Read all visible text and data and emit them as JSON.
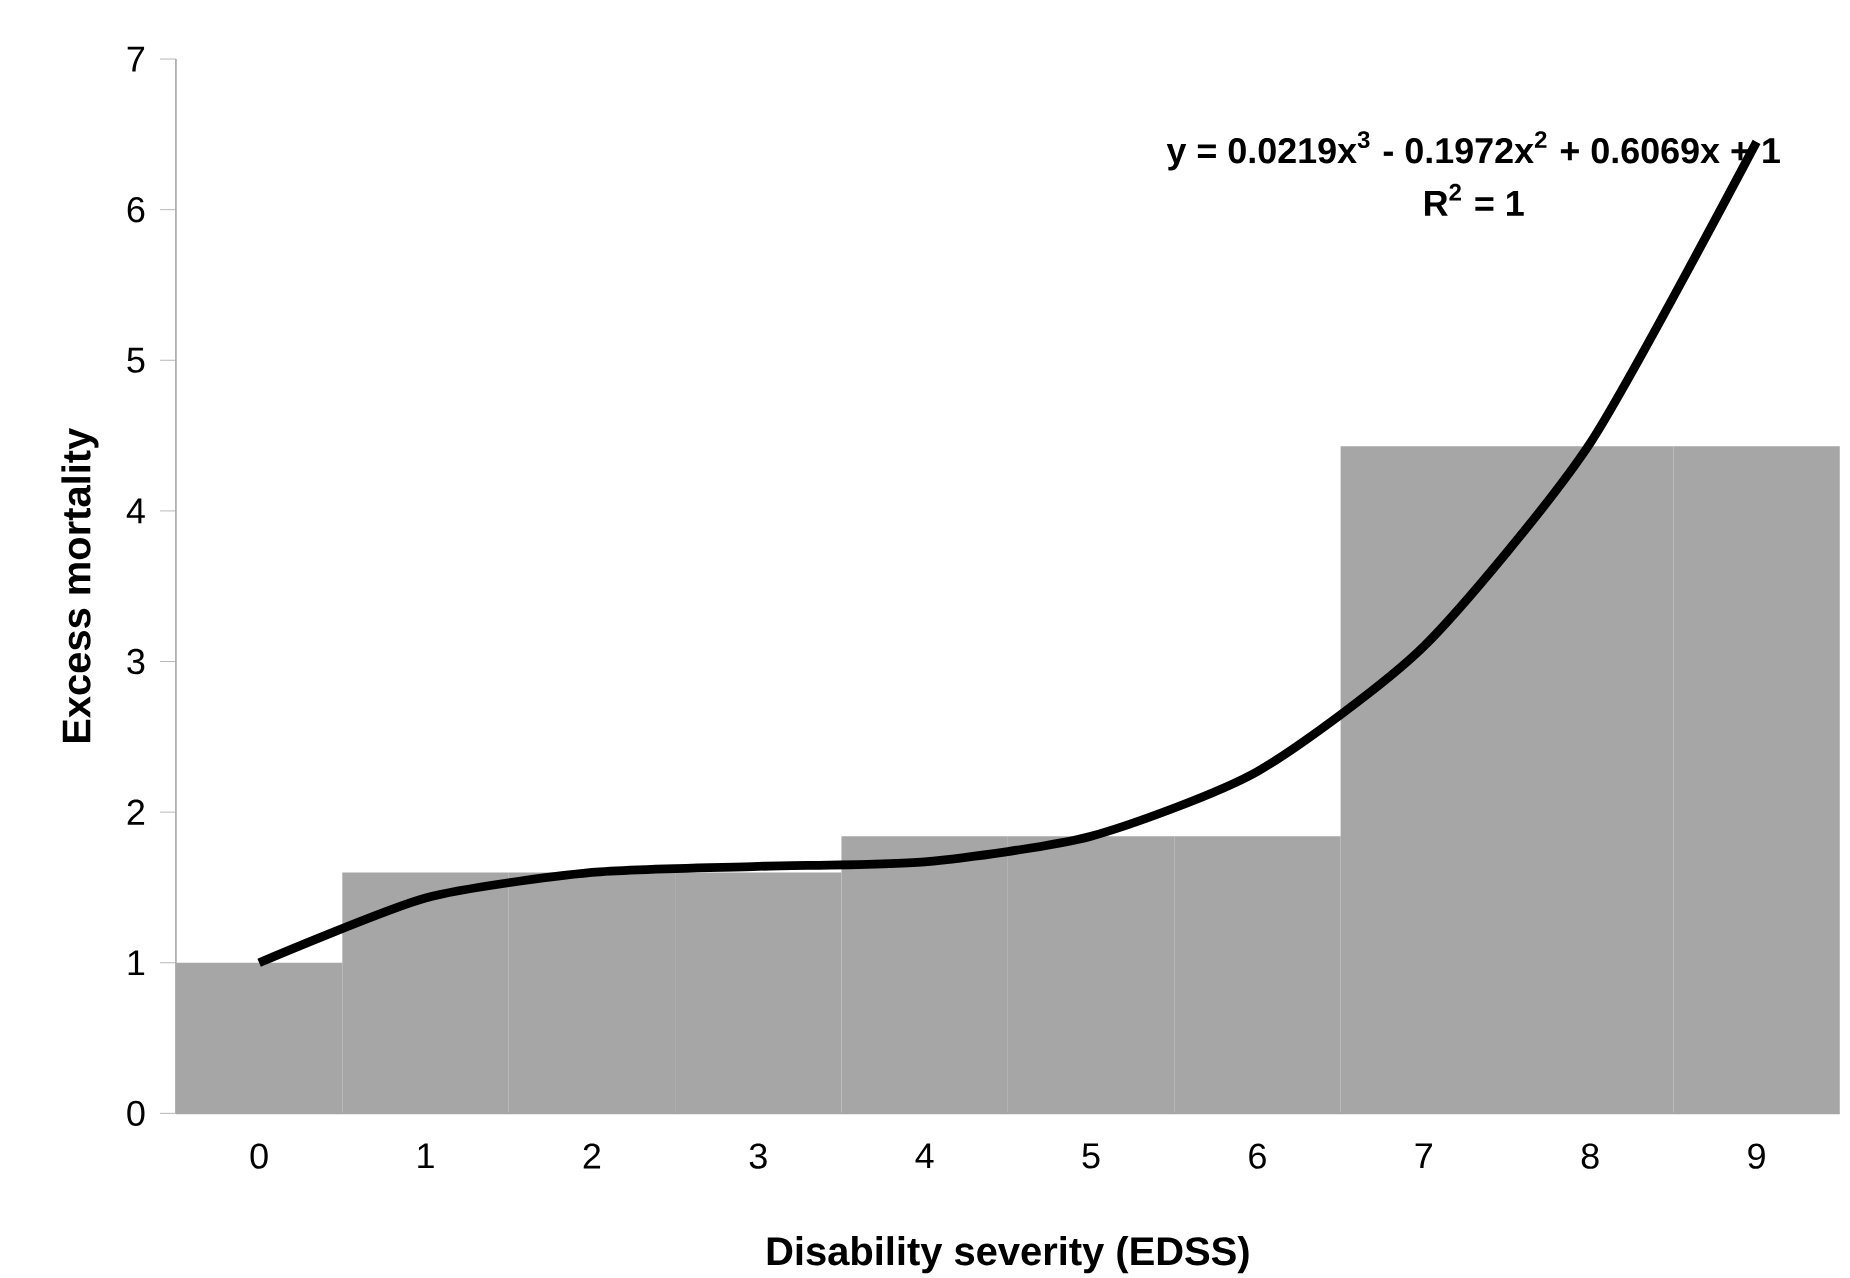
{
  "chart_data": {
    "type": "bar",
    "xlabel": "Disability severity (EDSS)",
    "ylabel": "Excess mortality",
    "categories": [
      "0",
      "1",
      "2",
      "3",
      "4",
      "5",
      "6",
      "7",
      "8",
      "9"
    ],
    "series": [
      {
        "color": "#a6a6a6",
        "values": [
          1,
          1.6,
          1.6,
          1.6,
          1.84,
          1.84,
          1.84,
          4.43,
          4.43,
          4.43
        ]
      },
      {
        "type": "line",
        "color": "#000000",
        "values": [
          1,
          1.43,
          1.6,
          1.64,
          1.67,
          1.84,
          2.27,
          3.1,
          4.45,
          6.45
        ]
      }
    ],
    "ylim": [
      0,
      7
    ],
    "yticks": [
      0,
      1,
      2,
      3,
      4,
      5,
      6,
      7
    ],
    "annotations": [
      "y = 0.0219x$^{3}$ - 0.1972x$^{2}$ + 0.6069x + 1",
      "R$^{2}$ = 1"
    ],
    "grid": false,
    "marker": "none"
  }
}
